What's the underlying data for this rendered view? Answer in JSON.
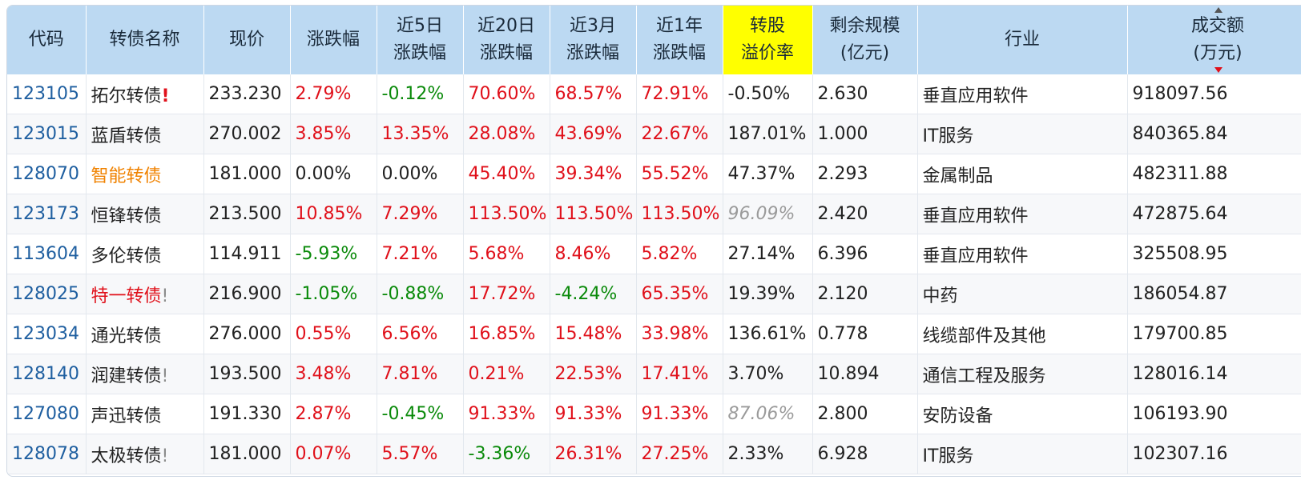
{
  "columns": [
    {
      "id": "code",
      "label1": "代码",
      "label2": ""
    },
    {
      "id": "name",
      "label1": "转债名称",
      "label2": ""
    },
    {
      "id": "price",
      "label1": "现价",
      "label2": ""
    },
    {
      "id": "change",
      "label1": "涨跌幅",
      "label2": ""
    },
    {
      "id": "chg5d",
      "label1": "近5日",
      "label2": "涨跌幅"
    },
    {
      "id": "chg20d",
      "label1": "近20日",
      "label2": "涨跌幅"
    },
    {
      "id": "chg3m",
      "label1": "近3月",
      "label2": "涨跌幅"
    },
    {
      "id": "chg1y",
      "label1": "近1年",
      "label2": "涨跌幅"
    },
    {
      "id": "premium",
      "label1": "转股",
      "label2": "溢价率"
    },
    {
      "id": "remaining",
      "label1": "剩余规模",
      "label2": "(亿元)"
    },
    {
      "id": "industry",
      "label1": "行业",
      "label2": ""
    },
    {
      "id": "turnover",
      "label1": "成交额",
      "label2": "(万元)"
    }
  ],
  "highlight_color": "#ffff00",
  "rows": [
    {
      "code": "123105",
      "name": "拓尔转债",
      "flag": "!",
      "flag_style": "strong",
      "name_color": "",
      "price": "233.230",
      "change": "2.79%",
      "chg5d": "-0.12%",
      "chg20d": "70.60%",
      "chg3m": "68.57%",
      "chg1y": "72.91%",
      "premium": "-0.50%",
      "premium_style": "",
      "remaining": "2.630",
      "industry": "垂直应用软件",
      "turnover": "918097.56"
    },
    {
      "code": "123015",
      "name": "蓝盾转债",
      "flag": "",
      "flag_style": "",
      "name_color": "",
      "price": "270.002",
      "change": "3.85%",
      "chg5d": "13.35%",
      "chg20d": "28.08%",
      "chg3m": "43.69%",
      "chg1y": "22.67%",
      "premium": "187.01%",
      "premium_style": "",
      "remaining": "1.000",
      "industry": "IT服务",
      "turnover": "840365.84"
    },
    {
      "code": "128070",
      "name": "智能转债",
      "flag": "",
      "flag_style": "",
      "name_color": "orange",
      "price": "181.000",
      "change": "0.00%",
      "chg5d": "0.00%",
      "chg20d": "45.40%",
      "chg3m": "39.34%",
      "chg1y": "55.52%",
      "premium": "47.37%",
      "premium_style": "",
      "remaining": "2.293",
      "industry": "金属制品",
      "turnover": "482311.88"
    },
    {
      "code": "123173",
      "name": "恒锋转债",
      "flag": "",
      "flag_style": "",
      "name_color": "",
      "price": "213.500",
      "change": "10.85%",
      "chg5d": "7.29%",
      "chg20d": "113.50%",
      "chg3m": "113.50%",
      "chg1y": "113.50%",
      "premium": "96.09%",
      "premium_style": "gray-italic",
      "remaining": "2.420",
      "industry": "垂直应用软件",
      "turnover": "472875.64"
    },
    {
      "code": "113604",
      "name": "多伦转债",
      "flag": "",
      "flag_style": "",
      "name_color": "",
      "price": "114.911",
      "change": "-5.93%",
      "chg5d": "7.21%",
      "chg20d": "5.68%",
      "chg3m": "8.46%",
      "chg1y": "5.82%",
      "premium": "27.14%",
      "premium_style": "",
      "remaining": "6.396",
      "industry": "垂直应用软件",
      "turnover": "325508.95"
    },
    {
      "code": "128025",
      "name": "特一转债",
      "flag": "!",
      "flag_style": "soft",
      "name_color": "red",
      "price": "216.900",
      "change": "-1.05%",
      "chg5d": "-0.88%",
      "chg20d": "17.72%",
      "chg3m": "-4.24%",
      "chg1y": "65.35%",
      "premium": "19.39%",
      "premium_style": "",
      "remaining": "2.120",
      "industry": "中药",
      "turnover": "186054.87"
    },
    {
      "code": "123034",
      "name": "通光转债",
      "flag": "",
      "flag_style": "",
      "name_color": "",
      "price": "276.000",
      "change": "0.55%",
      "chg5d": "6.56%",
      "chg20d": "16.85%",
      "chg3m": "15.48%",
      "chg1y": "33.98%",
      "premium": "136.61%",
      "premium_style": "",
      "remaining": "0.778",
      "industry": "线缆部件及其他",
      "turnover": "179700.85"
    },
    {
      "code": "128140",
      "name": "润建转债",
      "flag": "!",
      "flag_style": "soft",
      "name_color": "",
      "price": "193.500",
      "change": "3.48%",
      "chg5d": "7.81%",
      "chg20d": "0.21%",
      "chg3m": "22.53%",
      "chg1y": "17.41%",
      "premium": "3.70%",
      "premium_style": "",
      "remaining": "10.894",
      "industry": "通信工程及服务",
      "turnover": "128016.14"
    },
    {
      "code": "127080",
      "name": "声迅转债",
      "flag": "",
      "flag_style": "",
      "name_color": "",
      "price": "191.330",
      "change": "2.87%",
      "chg5d": "-0.45%",
      "chg20d": "91.33%",
      "chg3m": "91.33%",
      "chg1y": "91.33%",
      "premium": "87.06%",
      "premium_style": "gray-italic",
      "remaining": "2.800",
      "industry": "安防设备",
      "turnover": "106193.90"
    },
    {
      "code": "128078",
      "name": "太极转债",
      "flag": "!",
      "flag_style": "soft",
      "name_color": "",
      "price": "181.000",
      "change": "0.07%",
      "chg5d": "5.57%",
      "chg20d": "-3.36%",
      "chg3m": "26.31%",
      "chg1y": "27.25%",
      "premium": "2.33%",
      "premium_style": "",
      "remaining": "6.928",
      "industry": "IT服务",
      "turnover": "102307.16"
    }
  ]
}
